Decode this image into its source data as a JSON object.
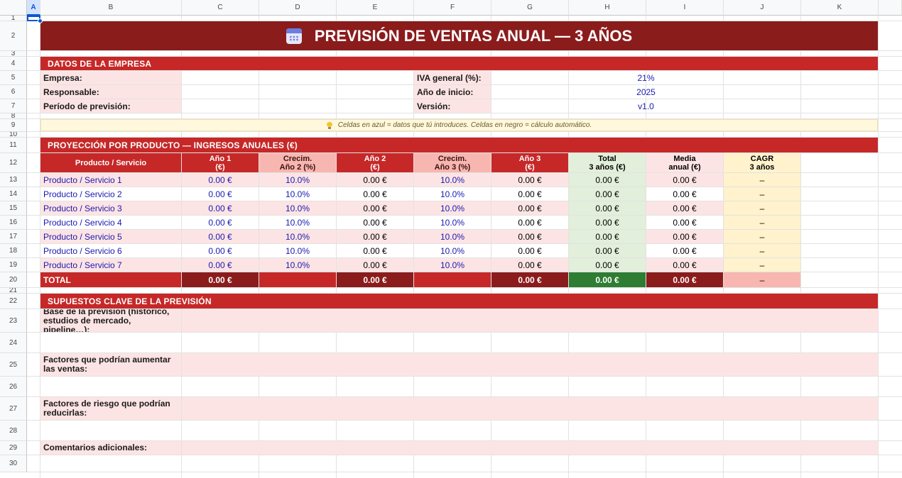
{
  "columns": [
    "A",
    "B",
    "C",
    "D",
    "E",
    "F",
    "G",
    "H",
    "I",
    "J",
    "K"
  ],
  "rows": [
    "1",
    "2",
    "3",
    "4",
    "5",
    "6",
    "7",
    "8",
    "9",
    "10",
    "11",
    "12",
    "13",
    "14",
    "15",
    "16",
    "17",
    "18",
    "19",
    "20",
    "21",
    "22",
    "23",
    "24",
    "25",
    "26",
    "27",
    "28",
    "29",
    "30"
  ],
  "title": "PREVISIÓN DE VENTAS ANUAL — 3 AÑOS",
  "company_section": {
    "header": "DATOS DE LA EMPRESA",
    "left_labels": [
      "Empresa:",
      "Responsable:",
      "Período de previsión:"
    ],
    "right": [
      {
        "label": "IVA general (%):",
        "value": "21%"
      },
      {
        "label": "Año de inicio:",
        "value": "2025"
      },
      {
        "label": "Versión:",
        "value": "v1.0"
      }
    ]
  },
  "note": "Celdas en azul = datos que tú introduces.  Celdas en negro = cálculo automático.",
  "projection": {
    "header": "PROYECCIÓN POR PRODUCTO — INGRESOS ANUALES (€)",
    "col_headers": {
      "product": "Producto / Servicio",
      "y1": "Año 1\n(€)",
      "g2": "Crecim.\nAño 2 (%)",
      "y2": "Año 2\n(€)",
      "g3": "Crecim.\nAño 3 (%)",
      "y3": "Año 3\n(€)",
      "total": "Total\n3 años (€)",
      "avg": "Media\nanual (€)",
      "cagr": "CAGR\n3 años"
    },
    "items": [
      {
        "name": "Producto / Servicio 1",
        "y1": "0.00 €",
        "g2": "10.0%",
        "y2": "0.00 €",
        "g3": "10.0%",
        "y3": "0.00 €",
        "total": "0.00 €",
        "avg": "0.00 €",
        "cagr": "–"
      },
      {
        "name": "Producto / Servicio 2",
        "y1": "0.00 €",
        "g2": "10.0%",
        "y2": "0.00 €",
        "g3": "10.0%",
        "y3": "0.00 €",
        "total": "0.00 €",
        "avg": "0.00 €",
        "cagr": "–"
      },
      {
        "name": "Producto / Servicio 3",
        "y1": "0.00 €",
        "g2": "10.0%",
        "y2": "0.00 €",
        "g3": "10.0%",
        "y3": "0.00 €",
        "total": "0.00 €",
        "avg": "0.00 €",
        "cagr": "–"
      },
      {
        "name": "Producto / Servicio 4",
        "y1": "0.00 €",
        "g2": "10.0%",
        "y2": "0.00 €",
        "g3": "10.0%",
        "y3": "0.00 €",
        "total": "0.00 €",
        "avg": "0.00 €",
        "cagr": "–"
      },
      {
        "name": "Producto / Servicio 5",
        "y1": "0.00 €",
        "g2": "10.0%",
        "y2": "0.00 €",
        "g3": "10.0%",
        "y3": "0.00 €",
        "total": "0.00 €",
        "avg": "0.00 €",
        "cagr": "–"
      },
      {
        "name": "Producto / Servicio 6",
        "y1": "0.00 €",
        "g2": "10.0%",
        "y2": "0.00 €",
        "g3": "10.0%",
        "y3": "0.00 €",
        "total": "0.00 €",
        "avg": "0.00 €",
        "cagr": "–"
      },
      {
        "name": "Producto / Servicio 7",
        "y1": "0.00 €",
        "g2": "10.0%",
        "y2": "0.00 €",
        "g3": "10.0%",
        "y3": "0.00 €",
        "total": "0.00 €",
        "avg": "0.00 €",
        "cagr": "–"
      }
    ],
    "total": {
      "label": "TOTAL",
      "y1": "0.00 €",
      "y2": "0.00 €",
      "y3": "0.00 €",
      "total": "0.00 €",
      "avg": "0.00 €",
      "cagr": "–"
    }
  },
  "assumptions": {
    "header": "SUPUESTOS CLAVE DE LA PREVISIÓN",
    "items": [
      "Base de la previsión (histórico, estudios de mercado, pipeline…):",
      "Factores que podrían aumentar las ventas:",
      "Factores de riesgo que podrían reducirlas:",
      "Comentarios adicionales:"
    ]
  },
  "colors": {
    "title_bg": "#8b1c1c",
    "section_bg": "#c62828",
    "label_bg": "#fde4e4",
    "input_text": "#1a1ab0",
    "total_green": "#2e7d32"
  }
}
